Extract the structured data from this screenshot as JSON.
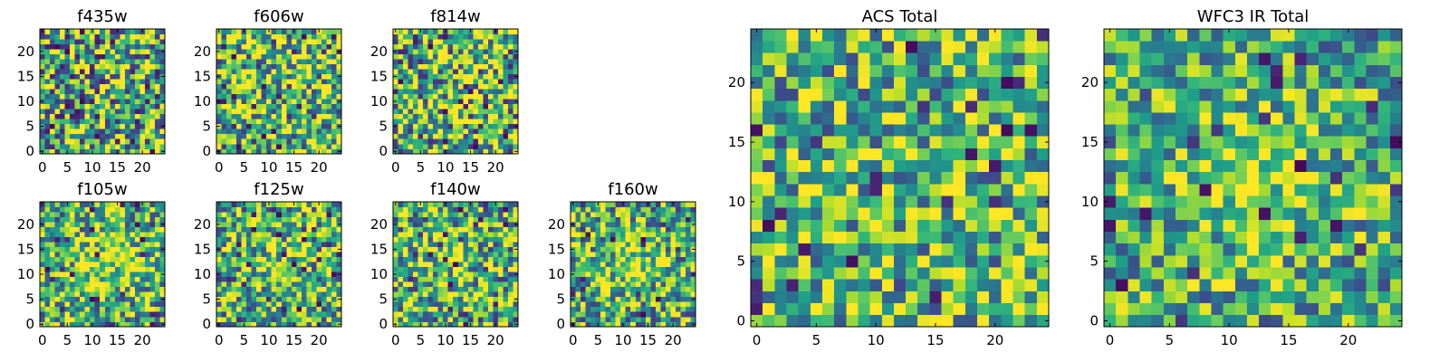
{
  "chart_data": [
    {
      "type": "heatmap",
      "title": "f435w",
      "xticks": [
        0,
        5,
        10,
        15,
        20
      ],
      "yticks": [
        0,
        5,
        10,
        15,
        20
      ],
      "xlim": [
        -0.5,
        24.5
      ],
      "ylim": [
        -0.5,
        24.5
      ],
      "colormap": "viridis",
      "grid": false
    },
    {
      "type": "heatmap",
      "title": "f606w",
      "xticks": [
        0,
        5,
        10,
        15,
        20
      ],
      "yticks": [
        0,
        5,
        10,
        15,
        20
      ],
      "xlim": [
        -0.5,
        24.5
      ],
      "ylim": [
        -0.5,
        24.5
      ],
      "colormap": "viridis",
      "grid": false
    },
    {
      "type": "heatmap",
      "title": "f814w",
      "xticks": [
        0,
        5,
        10,
        15,
        20
      ],
      "yticks": [
        0,
        5,
        10,
        15,
        20
      ],
      "xlim": [
        -0.5,
        24.5
      ],
      "ylim": [
        -0.5,
        24.5
      ],
      "colormap": "viridis",
      "grid": false
    },
    {
      "type": "heatmap",
      "title": "f105w",
      "xticks": [
        0,
        5,
        10,
        15,
        20
      ],
      "yticks": [
        0,
        5,
        10,
        15,
        20
      ],
      "xlim": [
        -0.5,
        24.5
      ],
      "ylim": [
        -0.5,
        24.5
      ],
      "colormap": "viridis",
      "grid": false
    },
    {
      "type": "heatmap",
      "title": "f125w",
      "xticks": [
        0,
        5,
        10,
        15,
        20
      ],
      "yticks": [
        0,
        5,
        10,
        15,
        20
      ],
      "xlim": [
        -0.5,
        24.5
      ],
      "ylim": [
        -0.5,
        24.5
      ],
      "colormap": "viridis",
      "grid": false
    },
    {
      "type": "heatmap",
      "title": "f140w",
      "xticks": [
        0,
        5,
        10,
        15,
        20
      ],
      "yticks": [
        0,
        5,
        10,
        15,
        20
      ],
      "xlim": [
        -0.5,
        24.5
      ],
      "ylim": [
        -0.5,
        24.5
      ],
      "colormap": "viridis",
      "grid": false
    },
    {
      "type": "heatmap",
      "title": "f160w",
      "xticks": [
        0,
        5,
        10,
        15,
        20
      ],
      "yticks": [
        0,
        5,
        10,
        15,
        20
      ],
      "xlim": [
        -0.5,
        24.5
      ],
      "ylim": [
        -0.5,
        24.5
      ],
      "colormap": "viridis",
      "grid": false
    },
    {
      "type": "heatmap",
      "title": "ACS Total",
      "xticks": [
        0,
        5,
        10,
        15,
        20
      ],
      "yticks": [
        0,
        5,
        10,
        15,
        20
      ],
      "xlim": [
        -0.5,
        24.5
      ],
      "ylim": [
        -0.5,
        24.5
      ],
      "colormap": "viridis",
      "grid": false
    },
    {
      "type": "heatmap",
      "title": "WFC3 IR Total",
      "xticks": [
        0,
        5,
        10,
        15,
        20
      ],
      "yticks": [
        0,
        5,
        10,
        15,
        20
      ],
      "xlim": [
        -0.5,
        24.5
      ],
      "ylim": [
        -0.5,
        24.5
      ],
      "colormap": "viridis",
      "grid": false
    }
  ]
}
